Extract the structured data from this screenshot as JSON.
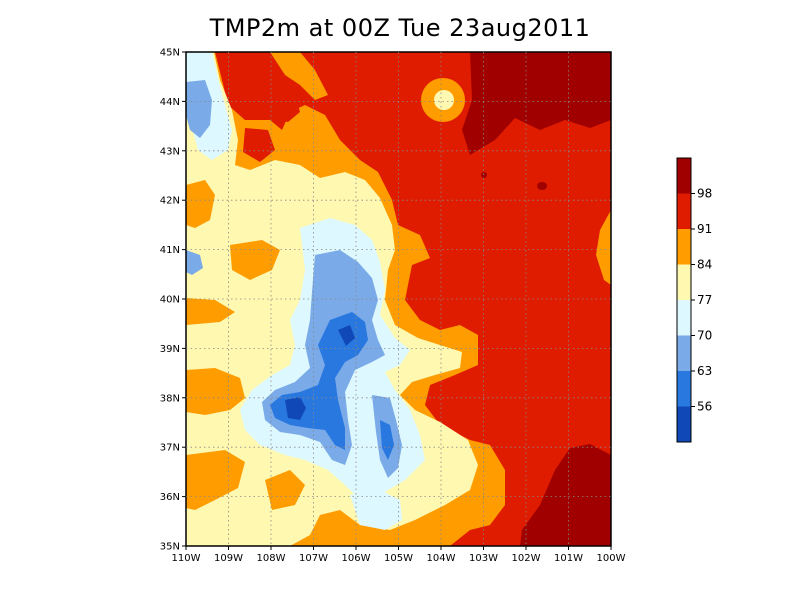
{
  "title": "TMP2m at 00Z Tue 23aug2011",
  "map": {
    "lon_labels": [
      "110W",
      "109W",
      "108W",
      "107W",
      "106W",
      "105W",
      "104W",
      "103W",
      "102W",
      "101W",
      "100W"
    ],
    "lat_labels": [
      "45N",
      "44N",
      "43N",
      "42N",
      "41N",
      "40N",
      "39N",
      "38N",
      "37N",
      "36N",
      "35N"
    ],
    "lon_range": [
      -110,
      -100
    ],
    "lat_range": [
      35,
      45
    ],
    "grid": "dotted"
  },
  "colorbar": {
    "levels": [
      "98",
      "91",
      "84",
      "77",
      "70",
      "63",
      "56"
    ],
    "colors": [
      "#a00000",
      "#e01c00",
      "#ff9c00",
      "#fff8b0",
      "#ddf8ff",
      "#7aaae8",
      "#2878e0",
      "#1048b8"
    ]
  }
}
